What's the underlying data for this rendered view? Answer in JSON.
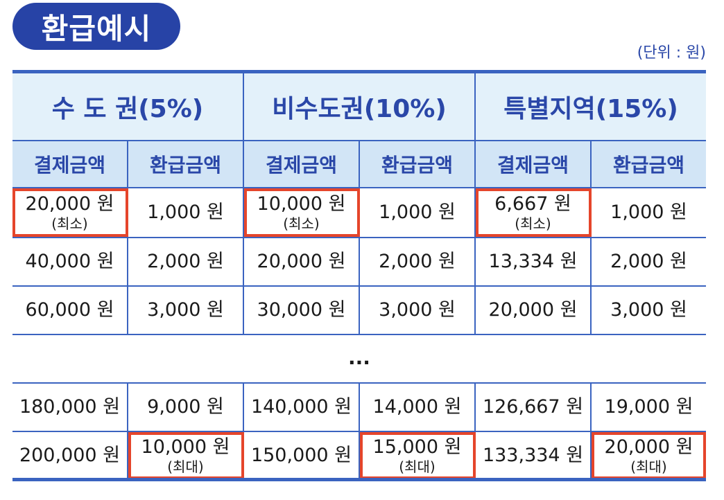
{
  "title": "환급예시",
  "unit_label": "(단위 : 원)",
  "regions": [
    {
      "label": "수 도 권(5%)"
    },
    {
      "label": "비수도권(10%)"
    },
    {
      "label": "특별지역(15%)"
    }
  ],
  "subheaders": [
    "결제금액",
    "환급금액",
    "결제금액",
    "환급금액",
    "결제금액",
    "환급금액"
  ],
  "rows_top": [
    [
      "20,000 원",
      "1,000 원",
      "10,000 원",
      "1,000 원",
      "6,667 원",
      "1,000 원"
    ],
    [
      "40,000 원",
      "2,000 원",
      "20,000 원",
      "2,000 원",
      "13,334 원",
      "2,000 원"
    ],
    [
      "60,000 원",
      "3,000 원",
      "30,000 원",
      "3,000 원",
      "20,000 원",
      "3,000 원"
    ]
  ],
  "min_note": "(최소)",
  "ellipsis": "...",
  "rows_bottom": [
    [
      "180,000 원",
      "9,000 원",
      "140,000 원",
      "14,000 원",
      "126,667 원",
      "19,000 원"
    ],
    [
      "200,000 원",
      "10,000 원",
      "150,000 원",
      "15,000 원",
      "133,334 원",
      "20,000 원"
    ]
  ],
  "max_note": "(최대)",
  "highlight_color": "#e5452b",
  "accent_color": "#2743a6"
}
